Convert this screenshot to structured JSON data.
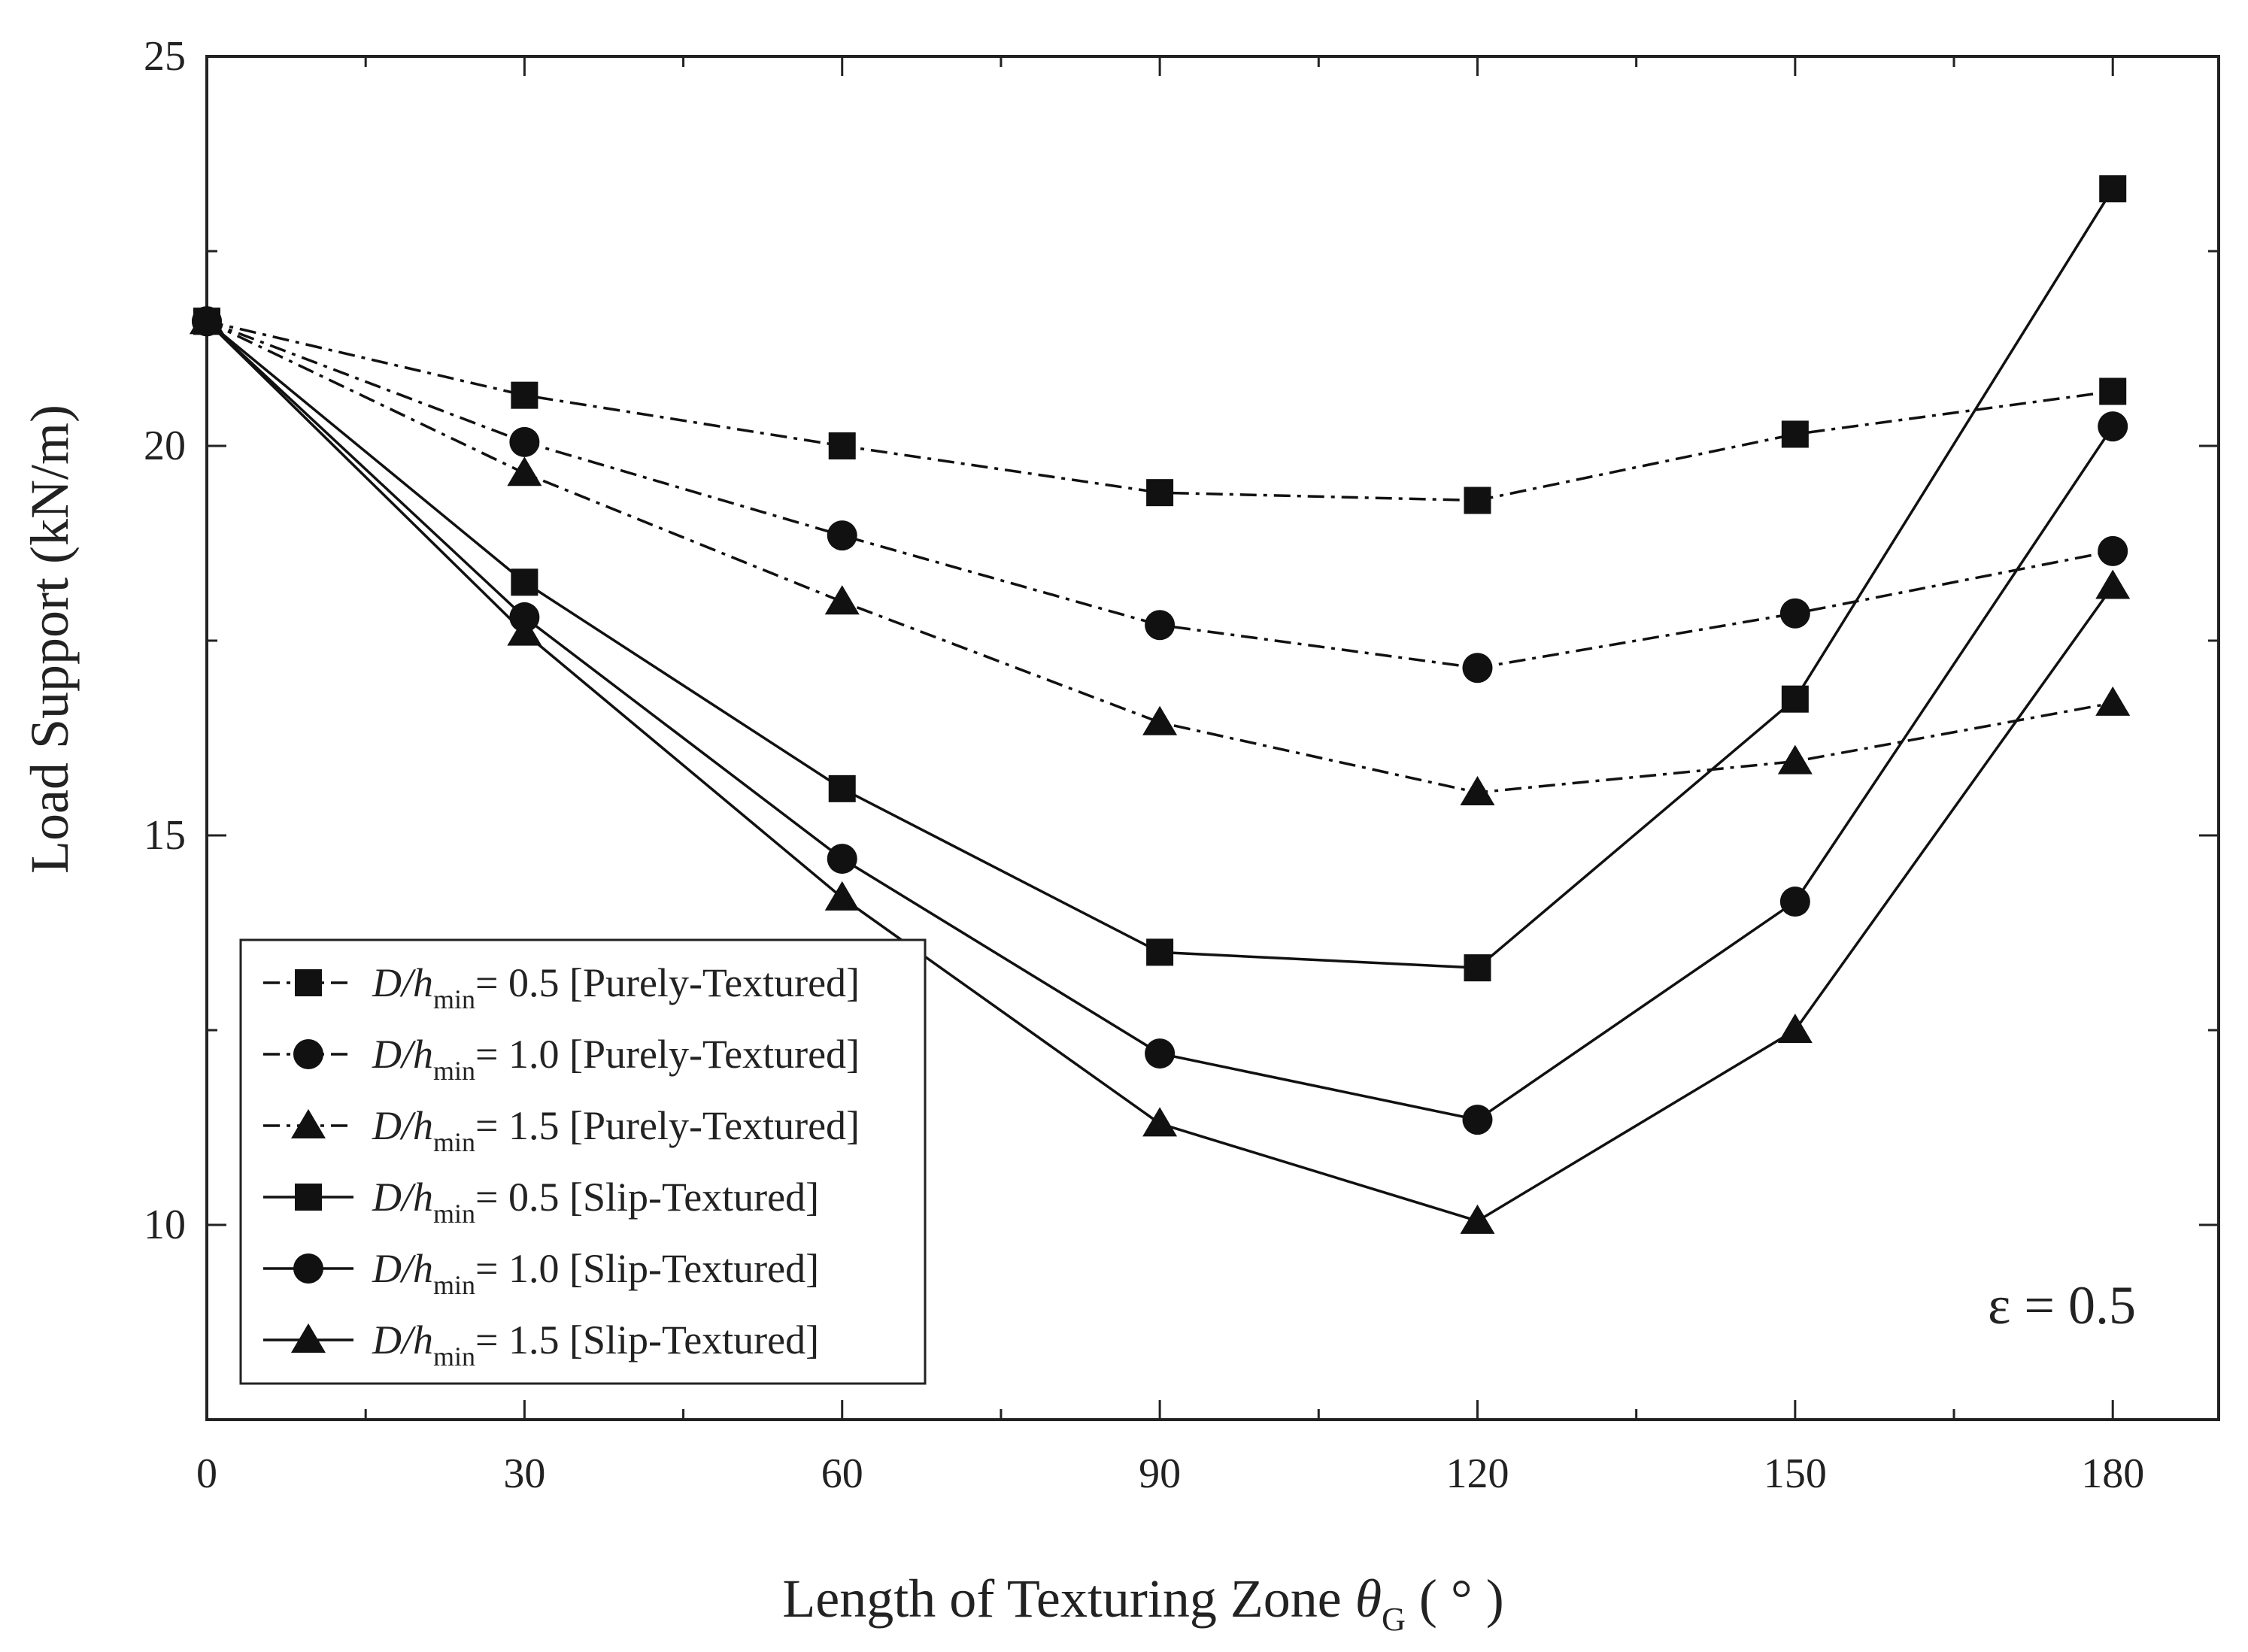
{
  "chart_data": {
    "type": "line",
    "title": "",
    "xlabel": {
      "main": "Length of Texturing Zone ",
      "symbol": "θ",
      "subscript": "G",
      "unit": " ( ° )"
    },
    "ylabel": "Load Support (kN/m)",
    "xlim": [
      0,
      190
    ],
    "ylim": [
      7.5,
      25
    ],
    "xticks": [
      0,
      30,
      60,
      90,
      120,
      150,
      180
    ],
    "yticks": [
      10,
      15,
      20,
      25
    ],
    "x": [
      0,
      30,
      60,
      90,
      120,
      150,
      180
    ],
    "annotation": "ε = 0.5",
    "series": [
      {
        "name": "D/hmin = 0.5 [Purely-Textured]",
        "label_main": "D/h",
        "label_sub": "min",
        "label_rest": "= 0.5 [Purely-Textured]",
        "marker": "square",
        "style": "dashdot",
        "values": [
          21.6,
          20.65,
          20.0,
          19.4,
          19.3,
          20.15,
          20.7
        ]
      },
      {
        "name": "D/hmin = 1.0 [Purely-Textured]",
        "label_main": "D/h",
        "label_sub": "min",
        "label_rest": "= 1.0 [Purely-Textured]",
        "marker": "circle",
        "style": "dashdot",
        "values": [
          21.6,
          20.05,
          18.85,
          17.7,
          17.15,
          17.85,
          18.65
        ]
      },
      {
        "name": "D/hmin = 1.5 [Purely-Textured]",
        "label_main": "D/h",
        "label_sub": "min",
        "label_rest": "= 1.5 [Purely-Textured]",
        "marker": "triangle",
        "style": "dashdot",
        "values": [
          21.6,
          19.65,
          18.0,
          16.45,
          15.55,
          15.95,
          16.7
        ]
      },
      {
        "name": "D/hmin = 0.5 [Slip-Textured]",
        "label_main": "D/h",
        "label_sub": "min",
        "label_rest": "= 0.5 [Slip-Textured]",
        "marker": "square",
        "style": "solid",
        "values": [
          21.6,
          18.25,
          15.6,
          13.5,
          13.3,
          16.75,
          23.3
        ]
      },
      {
        "name": "D/hmin = 1.0 [Slip-Textured]",
        "label_main": "D/h",
        "label_sub": "min",
        "label_rest": "= 1.0 [Slip-Textured]",
        "marker": "circle",
        "style": "solid",
        "values": [
          21.6,
          17.8,
          14.7,
          12.2,
          11.35,
          14.15,
          20.25
        ]
      },
      {
        "name": "D/hmin = 1.5 [Slip-Textured]",
        "label_main": "D/h",
        "label_sub": "min",
        "label_rest": "= 1.5 [Slip-Textured]",
        "marker": "triangle",
        "style": "solid",
        "values": [
          21.6,
          17.6,
          14.2,
          11.3,
          10.05,
          12.5,
          18.2
        ]
      }
    ]
  }
}
